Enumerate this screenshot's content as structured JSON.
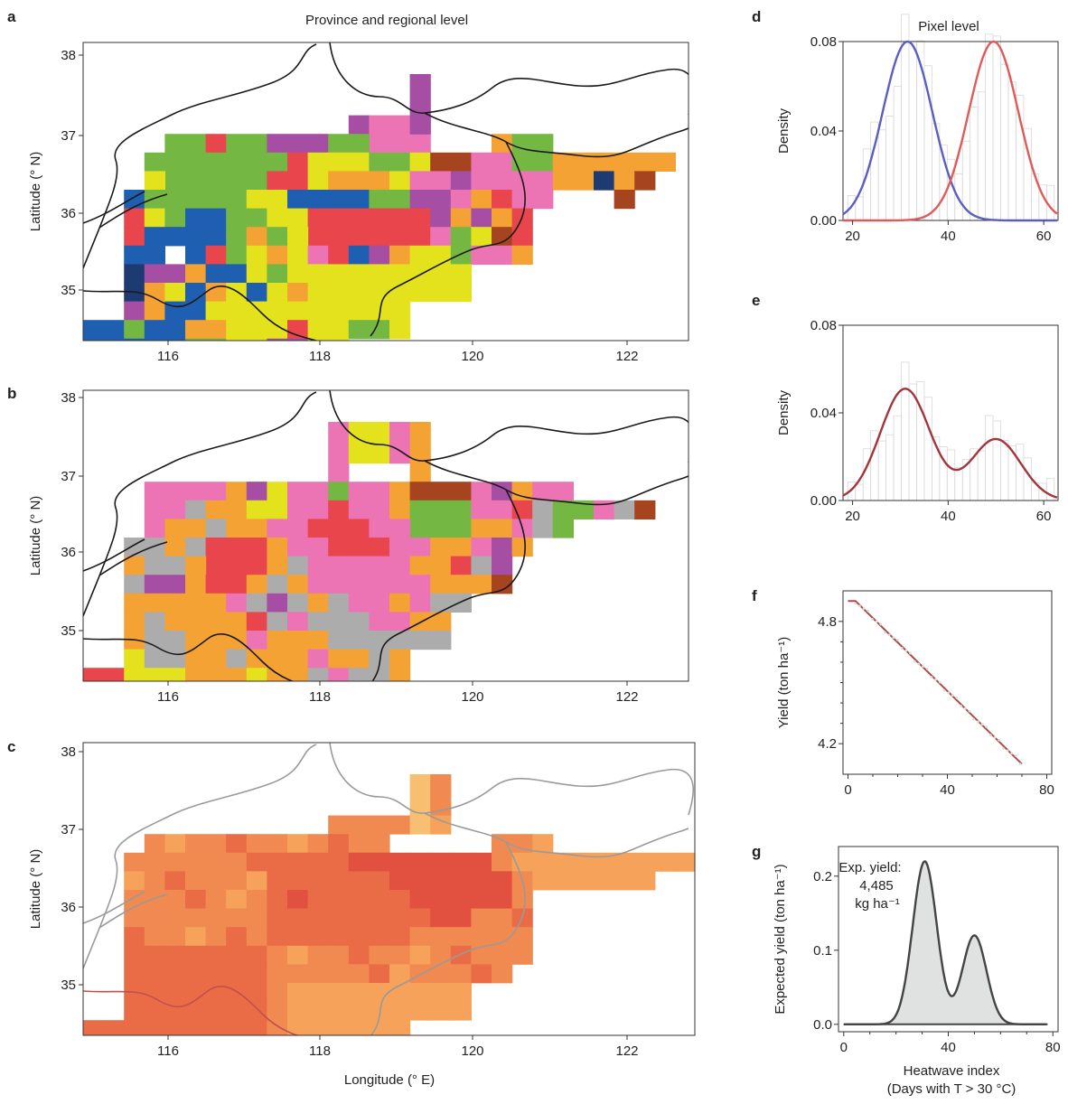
{
  "panels": {
    "a": "a",
    "b": "b",
    "c": "c",
    "d": "d",
    "e": "e",
    "f": "f",
    "g": "g"
  },
  "left_title": "Province and  regional  level",
  "right_title": "Pixel level",
  "maps": {
    "ylabel": "Latitude (° N)",
    "xlabel": "Longitude (° E)",
    "lat_ticks": [
      "38",
      "37",
      "36",
      "35"
    ],
    "lon_ticks": [
      "116",
      "118",
      "120",
      "122"
    ],
    "palette_ab": {
      "blue": "#1f5fb1",
      "navy": "#1e3a73",
      "green": "#74b843",
      "dgreen": "#4aae4a",
      "yellow": "#e3e21c",
      "orange": "#f4a234",
      "red": "#e8454c",
      "pink": "#ec74b5",
      "purple": "#a64ea3",
      "brown": "#a5441f",
      "grey": "#acacac"
    },
    "palette_c": [
      "#f8bf72",
      "#f6a25b",
      "#f08a50",
      "#ea6c47",
      "#e25140"
    ]
  },
  "chart_data": [
    {
      "panel": "d",
      "type": "line",
      "ylabel": "Density",
      "xlim": [
        18,
        63
      ],
      "ylim": [
        0,
        0.08
      ],
      "x_ticks": [
        "20",
        "40",
        "60"
      ],
      "y_ticks": [
        "0.00",
        "0.04",
        "0.08"
      ],
      "series": [
        {
          "color": "#5a5fbf",
          "dist": "normal",
          "mean": 31.5,
          "peak": 0.08
        },
        {
          "color": "#e05a5a",
          "dist": "normal",
          "mean": 49.5,
          "peak": 0.08
        }
      ],
      "histogram": "light grey background bars"
    },
    {
      "panel": "e",
      "type": "line",
      "ylabel": "Density",
      "xlim": [
        18,
        63
      ],
      "ylim": [
        0,
        0.08
      ],
      "x_ticks": [
        "20",
        "40",
        "60"
      ],
      "y_ticks": [
        "0.00",
        "0.04",
        "0.08"
      ],
      "series": [
        {
          "color": "#a3353c",
          "dist": "bimodal",
          "modes": [
            31,
            50
          ],
          "peaks": [
            0.051,
            0.028
          ]
        }
      ],
      "histogram": "light grey background bars"
    },
    {
      "panel": "f",
      "type": "line",
      "ylabel": "Yield (ton ha⁻¹)",
      "xlim": [
        -2,
        82
      ],
      "ylim": [
        4.05,
        4.95
      ],
      "x_ticks": [
        "0",
        "40",
        "80"
      ],
      "y_ticks": [
        "4.8",
        "4.2"
      ],
      "series": [
        {
          "color": "#b04a4a",
          "x": [
            0,
            3,
            70
          ],
          "y": [
            4.9,
            4.9,
            4.1
          ]
        }
      ]
    },
    {
      "panel": "g",
      "type": "area",
      "ylabel": "Expected  yield (ton ha⁻¹)",
      "xlabel": "Heatwave index",
      "xlabel2": "(Days with T > 30 °C)",
      "xlim": [
        -2,
        82
      ],
      "ylim": [
        -0.01,
        0.24
      ],
      "x_ticks": [
        "0",
        "40",
        "80"
      ],
      "y_ticks": [
        "0.0",
        "0.1",
        "0.2"
      ],
      "series": [
        {
          "color": "#444444",
          "fill": "#dfe2e0",
          "dist": "bimodal",
          "modes": [
            31,
            50
          ],
          "peaks": [
            0.22,
            0.12
          ]
        }
      ],
      "annotation": [
        "Exp. yield:",
        "4,485",
        "kg ha⁻¹"
      ]
    }
  ]
}
